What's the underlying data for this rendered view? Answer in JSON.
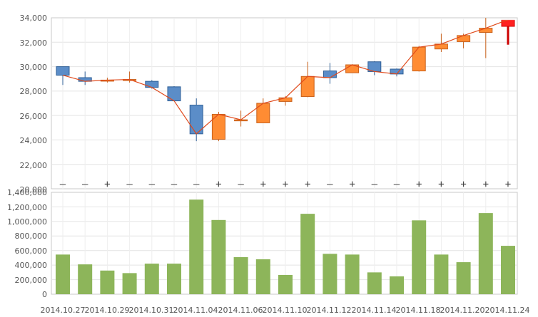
{
  "chart_data": [
    {
      "type": "candlestick",
      "y_ticks": [
        "34,000",
        "32,000",
        "30,000",
        "28,000",
        "26,000",
        "24,000",
        "22,000",
        "20,000"
      ],
      "ylim": [
        20000,
        34000
      ],
      "grid": true,
      "colors": {
        "up": "#ff8c33",
        "down": "#5b8dc8",
        "line": "#e04a1c",
        "last": "#ff2020"
      },
      "candles": [
        {
          "open": 30000,
          "close": 29300,
          "high": 30000,
          "low": 28500
        },
        {
          "open": 29100,
          "close": 28800,
          "high": 29600,
          "low": 28500
        },
        {
          "open": 28900,
          "close": 28900,
          "high": 29100,
          "low": 28700
        },
        {
          "open": 28950,
          "close": 28950,
          "high": 29600,
          "low": 28700
        },
        {
          "open": 28800,
          "close": 28300,
          "high": 28900,
          "low": 28200
        },
        {
          "open": 28350,
          "close": 27200,
          "high": 28400,
          "low": 27200
        },
        {
          "open": 26850,
          "close": 24500,
          "high": 27400,
          "low": 23900
        },
        {
          "open": 24050,
          "close": 26100,
          "high": 26300,
          "low": 23900
        },
        {
          "open": 25650,
          "close": 25650,
          "high": 26400,
          "low": 25100
        },
        {
          "open": 25400,
          "close": 27000,
          "high": 27400,
          "low": 25400
        },
        {
          "open": 27150,
          "close": 27450,
          "high": 27600,
          "low": 26800
        },
        {
          "open": 27550,
          "close": 29200,
          "high": 30400,
          "low": 27500
        },
        {
          "open": 29650,
          "close": 29100,
          "high": 30300,
          "low": 28600
        },
        {
          "open": 29500,
          "close": 30150,
          "high": 30200,
          "low": 29500
        },
        {
          "open": 30400,
          "close": 29600,
          "high": 30450,
          "low": 29300
        },
        {
          "open": 29800,
          "close": 29400,
          "high": 29850,
          "low": 29200
        },
        {
          "open": 29650,
          "close": 31600,
          "high": 31700,
          "low": 29600
        },
        {
          "open": 31450,
          "close": 31850,
          "high": 32700,
          "low": 31200
        },
        {
          "open": 32050,
          "close": 32550,
          "high": 32700,
          "low": 31500
        },
        {
          "open": 32800,
          "close": 33150,
          "high": 34000,
          "low": 30700
        },
        {
          "open": 33300,
          "close": 33850,
          "high": 33850,
          "low": 31800
        }
      ],
      "line": [
        29300,
        28800,
        28900,
        28950,
        28300,
        27200,
        24500,
        26100,
        25650,
        27000,
        27450,
        29200,
        29100,
        30150,
        29600,
        29400,
        31600,
        31850,
        32550,
        33150,
        33850
      ],
      "signs": [
        "—",
        "—",
        "+",
        "—",
        "—",
        "—",
        "—",
        "+",
        "—",
        "+",
        "+",
        "+",
        "—",
        "+",
        "—",
        "—",
        "+",
        "+",
        "+",
        "+",
        "+"
      ]
    },
    {
      "type": "bar",
      "y_ticks": [
        "1,400,000",
        "1,200,000",
        "1,000,000",
        "800,000",
        "600,000",
        "400,000",
        "200,000",
        "0"
      ],
      "ylim": [
        0,
        1400000
      ],
      "grid": true,
      "bar_color": "#8db55a",
      "values": [
        545000,
        410000,
        325000,
        290000,
        420000,
        420000,
        1300000,
        1020000,
        510000,
        480000,
        265000,
        1105000,
        555000,
        545000,
        300000,
        245000,
        1015000,
        545000,
        440000,
        1115000,
        665000
      ],
      "x_labels": [
        "2014.10.27",
        "2014.10.29",
        "2014.10.31",
        "2014.11.04",
        "2014.11.06",
        "2014.11.10",
        "2014.11.12",
        "2014.11.14",
        "2014.11.18",
        "2014.11.20",
        "2014.11.24"
      ]
    }
  ]
}
